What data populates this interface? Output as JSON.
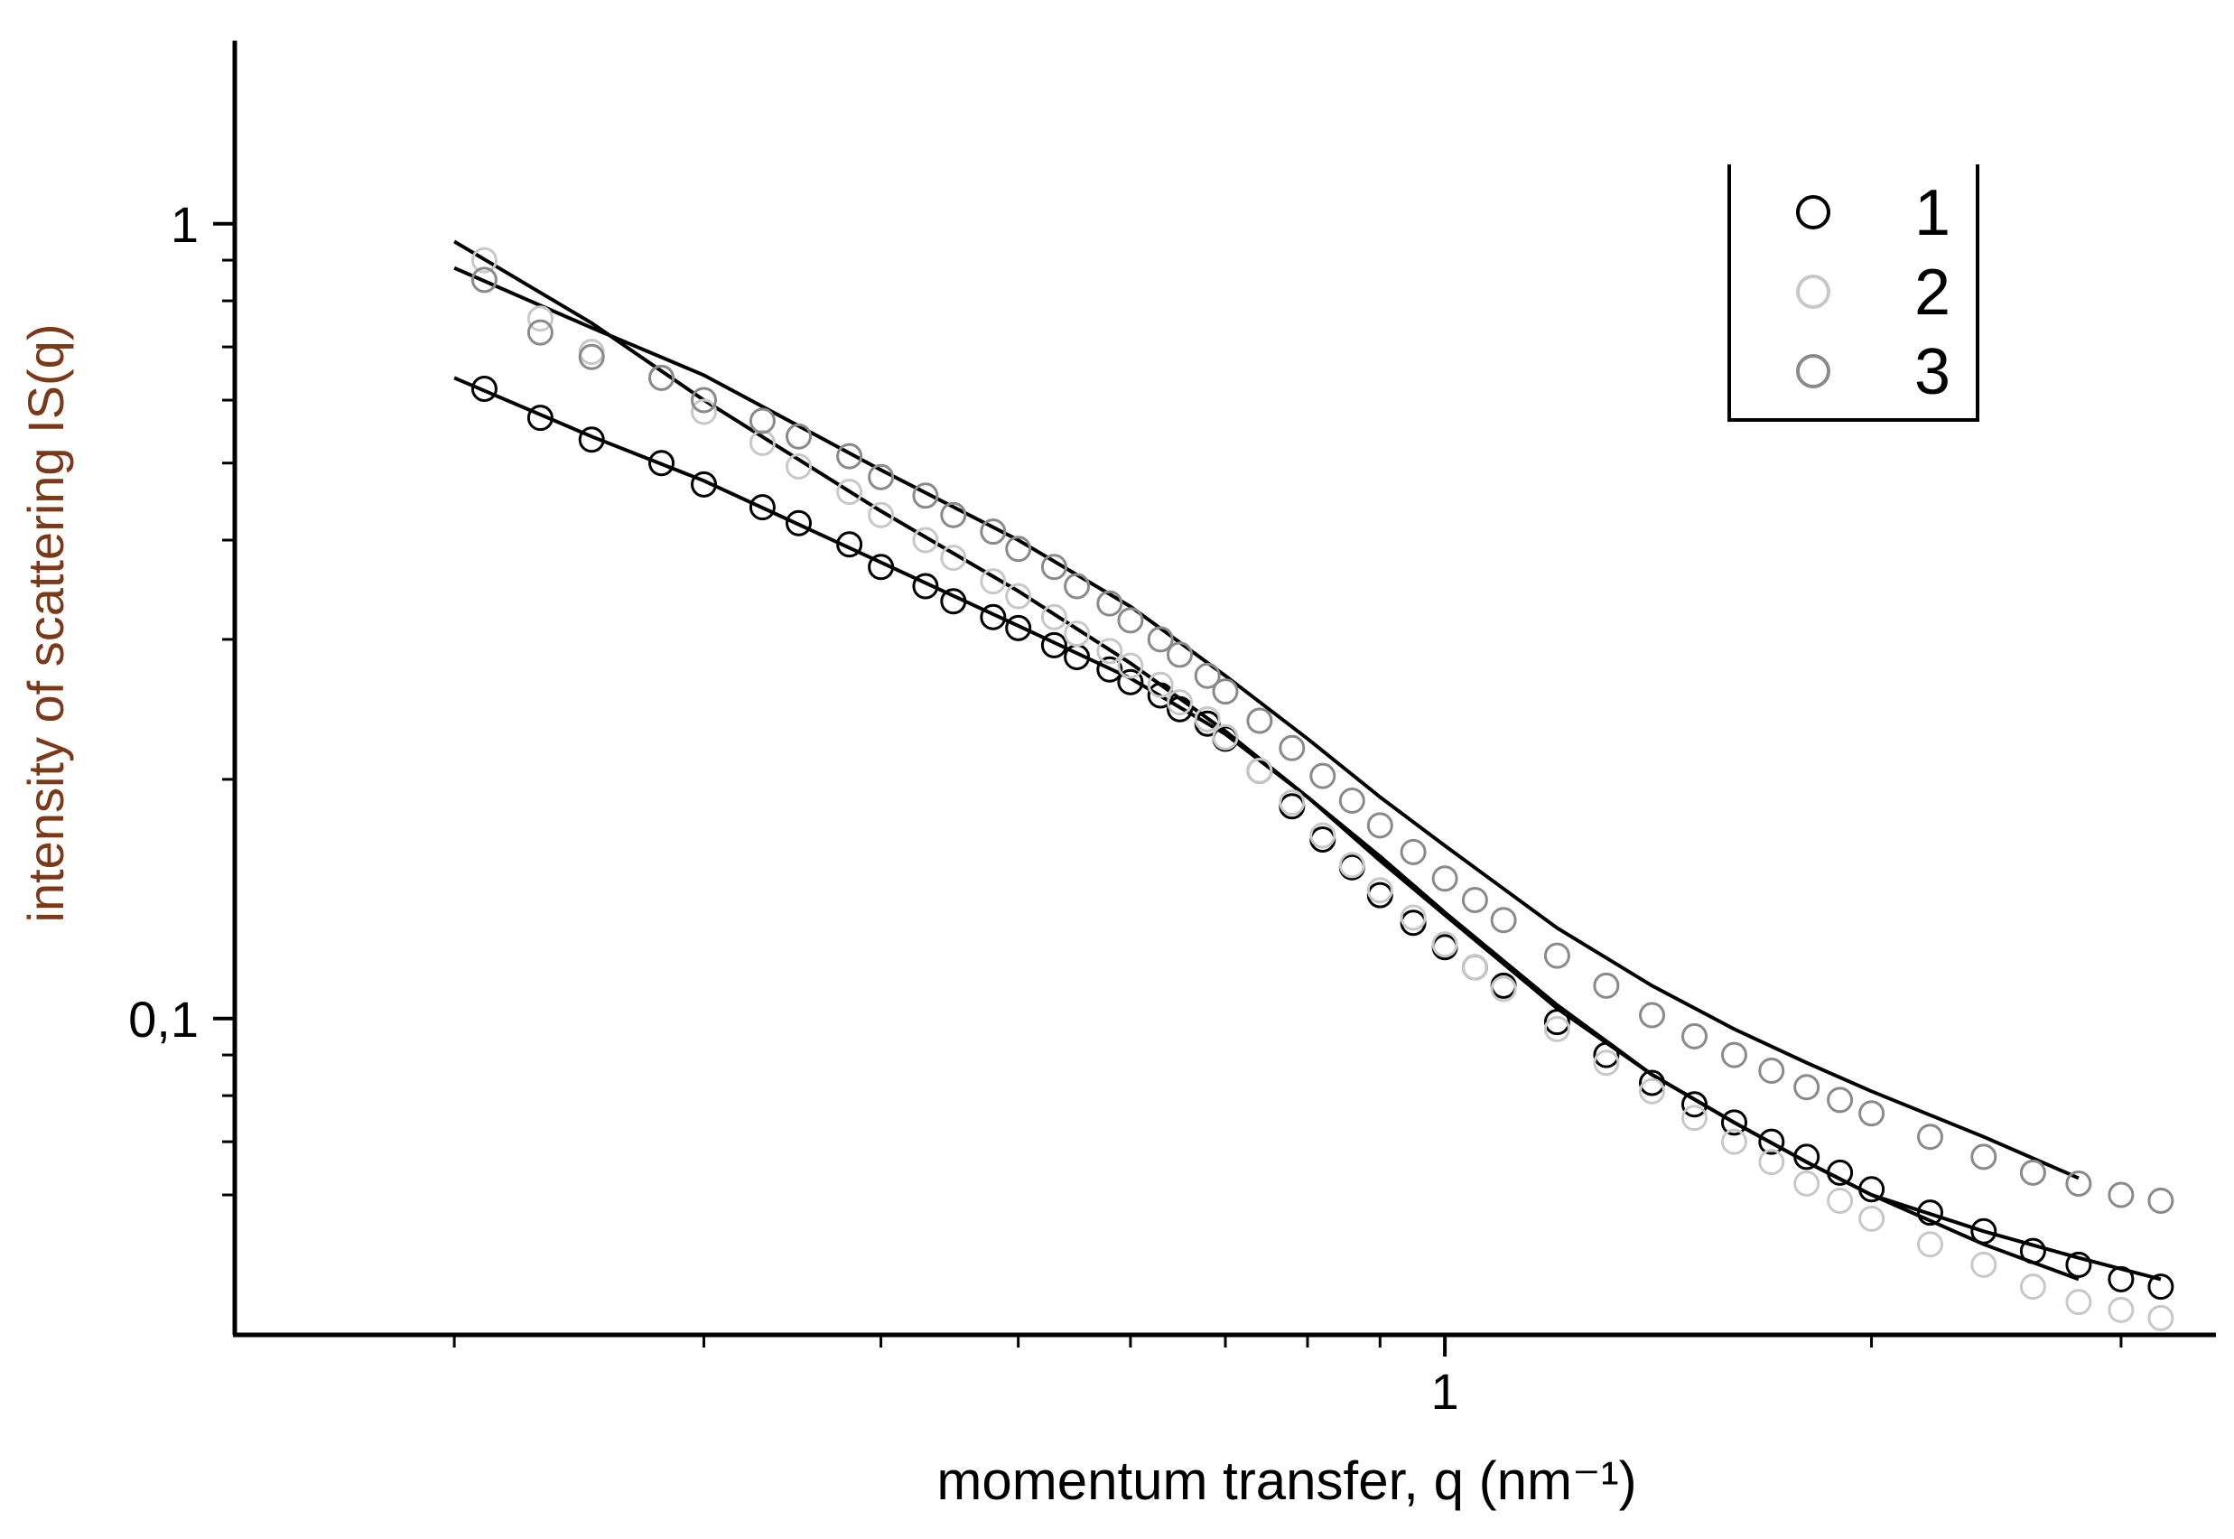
{
  "chart_data": {
    "type": "scatter",
    "title": "",
    "xlabel": "momentum transfer, q (nm⁻¹)",
    "ylabel": "intensity of scattering IS(q)",
    "xscale": "log",
    "yscale": "log",
    "xlim": [
      0.14,
      3.5
    ],
    "ylim": [
      0.04,
      1.7
    ],
    "x_tick_labels": [
      {
        "value": 1,
        "label": "1"
      }
    ],
    "y_tick_labels": [
      {
        "value": 1,
        "label": "1"
      },
      {
        "value": 0.1,
        "label": "0,1"
      }
    ],
    "x_minor_ticks": [
      0.2,
      0.3,
      0.4,
      0.5,
      0.6,
      0.7,
      0.8,
      0.9,
      2,
      3
    ],
    "y_minor_ticks": [
      0.06,
      0.07,
      0.08,
      0.09,
      0.2,
      0.3,
      0.4,
      0.5,
      0.6,
      0.7,
      0.8,
      0.9
    ],
    "grid": false,
    "legend": {
      "position": "top-right",
      "marker": "open-circle"
    },
    "colors": {
      "axis": "#000000",
      "ylabel": "#7a3a1a",
      "fit_line": "#000000"
    },
    "series": [
      {
        "name": "1",
        "color": "#000000",
        "x": [
          0.21,
          0.23,
          0.25,
          0.28,
          0.3,
          0.33,
          0.35,
          0.38,
          0.4,
          0.43,
          0.45,
          0.48,
          0.5,
          0.53,
          0.55,
          0.58,
          0.6,
          0.63,
          0.65,
          0.68,
          0.7,
          0.74,
          0.78,
          0.82,
          0.86,
          0.9,
          0.95,
          1.0,
          1.05,
          1.1,
          1.2,
          1.3,
          1.4,
          1.5,
          1.6,
          1.7,
          1.8,
          1.9,
          2.0,
          2.2,
          2.4,
          2.6,
          2.8,
          3.0,
          3.2
        ],
        "y": [
          0.62,
          0.57,
          0.535,
          0.5,
          0.47,
          0.44,
          0.42,
          0.395,
          0.37,
          0.35,
          0.335,
          0.32,
          0.31,
          0.295,
          0.285,
          0.275,
          0.265,
          0.255,
          0.245,
          0.235,
          0.225,
          0.205,
          0.185,
          0.168,
          0.155,
          0.143,
          0.132,
          0.123,
          0.116,
          0.11,
          0.099,
          0.09,
          0.083,
          0.078,
          0.074,
          0.07,
          0.067,
          0.064,
          0.061,
          0.057,
          0.054,
          0.051,
          0.049,
          0.047,
          0.046
        ]
      },
      {
        "name": "2",
        "color": "#c8c8c8",
        "x": [
          0.21,
          0.23,
          0.25,
          0.28,
          0.3,
          0.33,
          0.35,
          0.38,
          0.4,
          0.43,
          0.45,
          0.48,
          0.5,
          0.53,
          0.55,
          0.58,
          0.6,
          0.63,
          0.65,
          0.68,
          0.7,
          0.74,
          0.78,
          0.82,
          0.86,
          0.9,
          0.95,
          1.0,
          1.05,
          1.1,
          1.2,
          1.3,
          1.4,
          1.5,
          1.6,
          1.7,
          1.8,
          1.9,
          2.0,
          2.2,
          2.4,
          2.6,
          2.8,
          3.0,
          3.2
        ],
        "y": [
          0.9,
          0.76,
          0.69,
          0.64,
          0.58,
          0.53,
          0.495,
          0.46,
          0.43,
          0.4,
          0.38,
          0.355,
          0.34,
          0.32,
          0.305,
          0.29,
          0.278,
          0.263,
          0.25,
          0.238,
          0.226,
          0.205,
          0.187,
          0.17,
          0.156,
          0.145,
          0.134,
          0.124,
          0.116,
          0.109,
          0.097,
          0.088,
          0.081,
          0.075,
          0.07,
          0.066,
          0.062,
          0.059,
          0.056,
          0.052,
          0.049,
          0.046,
          0.044,
          0.043,
          0.042
        ]
      },
      {
        "name": "3",
        "color": "#8a8a8a",
        "x": [
          0.21,
          0.23,
          0.25,
          0.28,
          0.3,
          0.33,
          0.35,
          0.38,
          0.4,
          0.43,
          0.45,
          0.48,
          0.5,
          0.53,
          0.55,
          0.58,
          0.6,
          0.63,
          0.65,
          0.68,
          0.7,
          0.74,
          0.78,
          0.82,
          0.86,
          0.9,
          0.95,
          1.0,
          1.05,
          1.1,
          1.2,
          1.3,
          1.4,
          1.5,
          1.6,
          1.7,
          1.8,
          1.9,
          2.0,
          2.2,
          2.4,
          2.6,
          2.8,
          3.0,
          3.2
        ],
        "y": [
          0.85,
          0.73,
          0.68,
          0.64,
          0.6,
          0.565,
          0.54,
          0.51,
          0.48,
          0.455,
          0.43,
          0.41,
          0.39,
          0.37,
          0.35,
          0.333,
          0.317,
          0.3,
          0.287,
          0.27,
          0.258,
          0.237,
          0.219,
          0.202,
          0.188,
          0.175,
          0.162,
          0.15,
          0.141,
          0.133,
          0.12,
          0.11,
          0.101,
          0.095,
          0.09,
          0.086,
          0.082,
          0.079,
          0.076,
          0.071,
          0.067,
          0.064,
          0.062,
          0.06,
          0.059
        ]
      }
    ],
    "fit_curves": [
      {
        "x": [
          0.2,
          0.25,
          0.3,
          0.4,
          0.5,
          0.6,
          0.7,
          0.8,
          0.9,
          1.0,
          1.2,
          1.4,
          1.6,
          1.8,
          2.0,
          2.4,
          2.8,
          3.2
        ],
        "y": [
          0.64,
          0.54,
          0.475,
          0.375,
          0.312,
          0.268,
          0.228,
          0.19,
          0.16,
          0.136,
          0.104,
          0.085,
          0.074,
          0.066,
          0.06,
          0.054,
          0.05,
          0.047
        ]
      },
      {
        "x": [
          0.2,
          0.25,
          0.3,
          0.4,
          0.5,
          0.6,
          0.7,
          0.8,
          0.9,
          1.0,
          1.2,
          1.4,
          1.6,
          1.8,
          2.0,
          2.4,
          2.8
        ],
        "y": [
          0.95,
          0.75,
          0.6,
          0.435,
          0.345,
          0.28,
          0.23,
          0.19,
          0.158,
          0.135,
          0.103,
          0.085,
          0.074,
          0.066,
          0.06,
          0.052,
          0.047
        ]
      },
      {
        "x": [
          0.2,
          0.25,
          0.3,
          0.4,
          0.5,
          0.6,
          0.7,
          0.8,
          0.9,
          1.0,
          1.2,
          1.4,
          1.6,
          1.8,
          2.0,
          2.4,
          2.8
        ],
        "y": [
          0.88,
          0.74,
          0.645,
          0.49,
          0.4,
          0.33,
          0.27,
          0.225,
          0.19,
          0.165,
          0.13,
          0.11,
          0.097,
          0.088,
          0.081,
          0.071,
          0.063
        ]
      }
    ]
  }
}
